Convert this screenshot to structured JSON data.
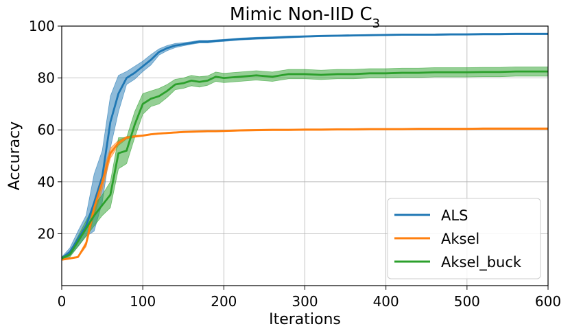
{
  "chart_data": {
    "type": "line",
    "title": "Mimic Non-IID C",
    "title_subscript": "3",
    "xlabel": "Iterations",
    "ylabel": "Accuracy",
    "xlim": [
      0,
      600
    ],
    "ylim": [
      0,
      100
    ],
    "xticks": [
      0,
      100,
      200,
      300,
      400,
      500,
      600
    ],
    "yticks": [
      20,
      40,
      60,
      80,
      100
    ],
    "xtick_labels": [
      "0",
      "100",
      "200",
      "300",
      "400",
      "500",
      "600"
    ],
    "ytick_labels": [
      "20",
      "40",
      "60",
      "80",
      "100"
    ],
    "grid": true,
    "legend_position": "lower-right",
    "x": [
      0,
      10,
      20,
      30,
      40,
      50,
      60,
      70,
      80,
      90,
      100,
      110,
      120,
      130,
      140,
      150,
      160,
      170,
      180,
      190,
      200,
      220,
      240,
      260,
      280,
      300,
      320,
      340,
      360,
      380,
      400,
      420,
      440,
      460,
      480,
      500,
      520,
      540,
      560,
      580,
      600
    ],
    "series": [
      {
        "name": "ALS",
        "color": "#1f77b4",
        "values": [
          10.5,
          13,
          18,
          23,
          32,
          42,
          63,
          74,
          80,
          82,
          84.5,
          87,
          90,
          91.5,
          92.5,
          93,
          93.5,
          94,
          94,
          94.3,
          94.5,
          95,
          95.3,
          95.5,
          95.8,
          96,
          96.2,
          96.3,
          96.4,
          96.5,
          96.6,
          96.7,
          96.7,
          96.7,
          96.8,
          96.8,
          96.9,
          96.9,
          97,
          97,
          97
        ],
        "band": [
          0.5,
          1.5,
          3,
          4,
          11,
          10,
          10,
          7,
          2.5,
          2.5,
          2,
          2,
          1.2,
          1,
          0.8,
          0.6,
          0.5,
          0.5,
          0.5,
          0.4,
          0.4,
          0.4,
          0.4,
          0.4,
          0.4,
          0.3,
          0.3,
          0.3,
          0.3,
          0.3,
          0.3,
          0.3,
          0.3,
          0.3,
          0.3,
          0.3,
          0.3,
          0.3,
          0.3,
          0.3,
          0.3
        ]
      },
      {
        "name": "Aksel",
        "color": "#ff7f0e",
        "values": [
          10,
          10.5,
          11,
          16,
          30,
          40,
          51,
          55,
          57,
          57.5,
          57.8,
          58.3,
          58.6,
          58.8,
          59,
          59.2,
          59.3,
          59.4,
          59.5,
          59.5,
          59.6,
          59.8,
          59.9,
          60,
          60,
          60.1,
          60.1,
          60.2,
          60.2,
          60.3,
          60.3,
          60.3,
          60.4,
          60.4,
          60.4,
          60.4,
          60.5,
          60.5,
          60.5,
          60.5,
          60.5
        ],
        "band": [
          0.3,
          0.3,
          0.3,
          1,
          3,
          3,
          2,
          1,
          0.5,
          0.4,
          0.3,
          0.3,
          0.3,
          0.3,
          0.3,
          0.3,
          0.3,
          0.3,
          0.3,
          0.3,
          0.3,
          0.3,
          0.3,
          0.3,
          0.3,
          0.3,
          0.3,
          0.3,
          0.3,
          0.3,
          0.3,
          0.3,
          0.3,
          0.3,
          0.3,
          0.3,
          0.3,
          0.3,
          0.3,
          0.3,
          0.3
        ]
      },
      {
        "name": "Aksel_buck",
        "color": "#2ca02c",
        "values": [
          10.5,
          12,
          17,
          22,
          27,
          31,
          35,
          51,
          52,
          62,
          70,
          72,
          73,
          75,
          77.5,
          78,
          79,
          78.5,
          79,
          80.5,
          80,
          80.5,
          81,
          80.5,
          81.5,
          81.5,
          81.2,
          81.5,
          81.5,
          81.8,
          81.8,
          82,
          82,
          82.2,
          82.2,
          82.2,
          82.3,
          82.3,
          82.5,
          82.5,
          82.5
        ],
        "band": [
          0.5,
          1,
          2,
          3,
          4,
          4,
          5,
          6,
          5,
          5,
          4,
          3,
          3,
          2.5,
          2,
          2,
          2,
          2,
          1.8,
          1.8,
          1.8,
          1.8,
          1.8,
          1.8,
          1.8,
          1.8,
          1.8,
          1.8,
          1.8,
          1.8,
          1.8,
          1.8,
          1.8,
          1.8,
          1.8,
          1.8,
          1.8,
          1.8,
          1.8,
          1.8,
          1.8
        ]
      }
    ]
  }
}
